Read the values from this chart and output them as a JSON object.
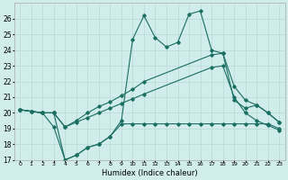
{
  "bg_color": "#d0eceb",
  "grid_color": "#b8d8d6",
  "line_color": "#1a6e62",
  "xlabel": "Humidex (Indice chaleur)",
  "xlim": [
    -0.5,
    23.5
  ],
  "ylim": [
    17,
    27
  ],
  "yticks": [
    17,
    18,
    19,
    20,
    21,
    22,
    23,
    24,
    25,
    26
  ],
  "xticks": [
    0,
    1,
    2,
    3,
    4,
    5,
    6,
    7,
    8,
    9,
    10,
    11,
    12,
    13,
    14,
    15,
    16,
    17,
    18,
    19,
    20,
    21,
    22,
    23
  ],
  "line1_x": [
    0,
    1,
    2,
    3,
    4,
    5,
    6,
    7,
    8,
    9,
    10,
    11,
    12,
    13,
    14,
    15,
    16,
    17,
    18,
    19,
    20,
    21,
    22,
    23
  ],
  "line1_y": [
    20.2,
    20.1,
    20.0,
    20.0,
    17.0,
    17.3,
    17.8,
    18.0,
    18.5,
    19.5,
    24.7,
    26.2,
    24.8,
    24.2,
    24.5,
    26.3,
    26.5,
    24.0,
    23.8,
    20.8,
    20.3,
    20.5,
    20.0,
    19.4
  ],
  "line2_x": [
    0,
    1,
    2,
    3,
    4,
    5,
    6,
    7,
    8,
    9,
    10,
    11,
    17,
    18,
    19,
    20,
    21,
    22,
    23
  ],
  "line2_y": [
    20.2,
    20.1,
    20.0,
    20.0,
    19.1,
    19.5,
    20.0,
    20.4,
    20.7,
    21.1,
    21.5,
    22.0,
    23.7,
    23.8,
    21.7,
    20.8,
    20.5,
    20.0,
    19.4
  ],
  "line3_x": [
    0,
    1,
    2,
    3,
    4,
    5,
    6,
    7,
    8,
    9,
    10,
    11,
    17,
    18,
    19,
    20,
    21,
    22,
    23
  ],
  "line3_y": [
    20.2,
    20.1,
    20.0,
    20.0,
    19.1,
    19.4,
    19.7,
    20.0,
    20.3,
    20.6,
    20.9,
    21.2,
    22.9,
    23.0,
    21.0,
    20.0,
    19.5,
    19.2,
    18.9
  ],
  "line4_x": [
    0,
    2,
    3,
    4,
    5,
    6,
    7,
    8,
    9,
    10,
    11,
    12,
    13,
    14,
    15,
    16,
    17,
    18,
    19,
    20,
    21,
    22,
    23
  ],
  "line4_y": [
    20.2,
    20.0,
    19.1,
    17.0,
    17.3,
    17.8,
    18.0,
    18.5,
    19.3,
    19.3,
    19.3,
    19.3,
    19.3,
    19.3,
    19.3,
    19.3,
    19.3,
    19.3,
    19.3,
    19.3,
    19.3,
    19.3,
    19.0
  ]
}
